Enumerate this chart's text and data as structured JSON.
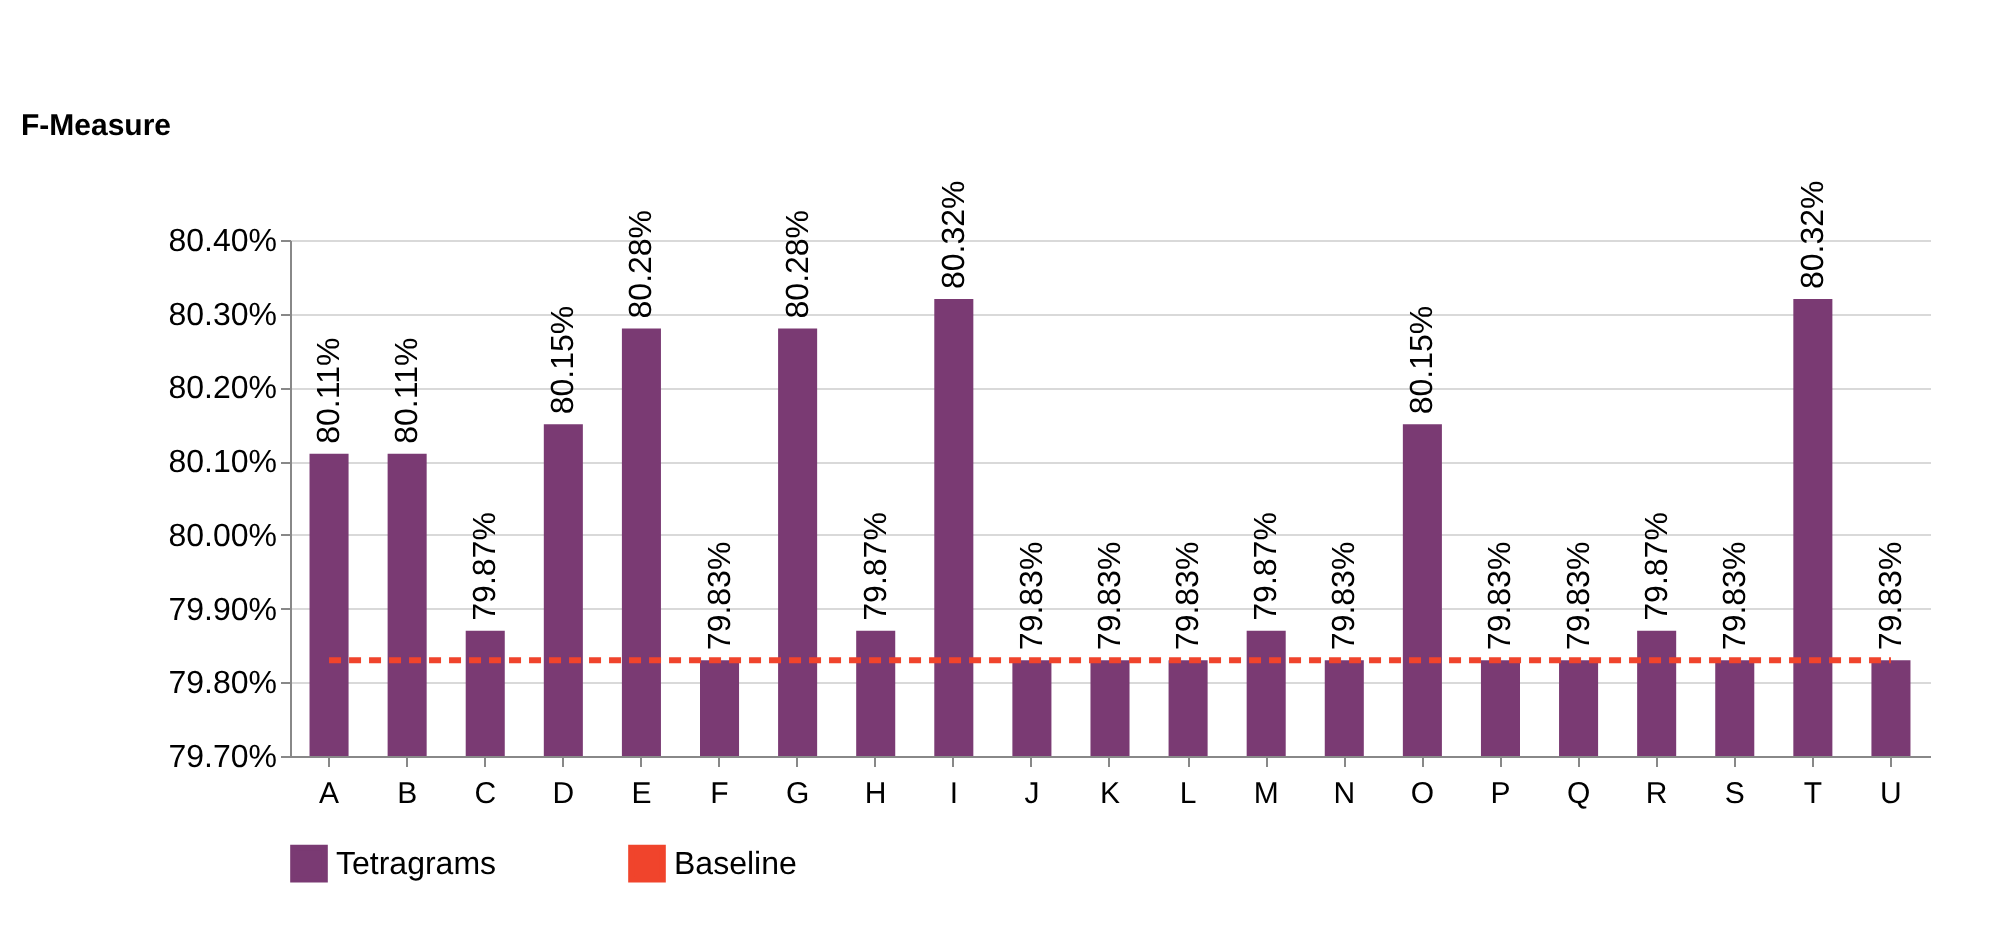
{
  "chart_data": {
    "type": "bar",
    "ylabel": "F-Measure",
    "categories": [
      "A",
      "B",
      "C",
      "D",
      "E",
      "F",
      "G",
      "H",
      "I",
      "J",
      "K",
      "L",
      "M",
      "N",
      "O",
      "P",
      "Q",
      "R",
      "S",
      "T",
      "U"
    ],
    "series": [
      {
        "name": "Tetragrams",
        "type": "bar",
        "color": "#7a3a73",
        "values": [
          80.11,
          80.11,
          79.87,
          80.15,
          80.28,
          79.83,
          80.28,
          79.87,
          80.32,
          79.83,
          79.83,
          79.83,
          79.87,
          79.83,
          80.15,
          79.83,
          79.83,
          79.87,
          79.83,
          80.32,
          79.83
        ],
        "value_labels": [
          "80.11%",
          "80.11%",
          "79.87%",
          "80.15%",
          "80.28%",
          "79.83%",
          "80.28%",
          "79.87%",
          "80.32%",
          "79.83%",
          "79.83%",
          "79.83%",
          "79.87%",
          "79.83%",
          "80.15%",
          "79.83%",
          "79.83%",
          "79.87%",
          "79.83%",
          "80.32%",
          "79.83%"
        ]
      },
      {
        "name": "Baseline",
        "type": "line",
        "color": "#f0442c",
        "line_style": "dashed",
        "values": [
          79.83,
          79.83,
          79.83,
          79.83,
          79.83,
          79.83,
          79.83,
          79.83,
          79.83,
          79.83,
          79.83,
          79.83,
          79.83,
          79.83,
          79.83,
          79.83,
          79.83,
          79.83,
          79.83,
          79.83,
          79.83
        ]
      }
    ],
    "ylim": [
      79.7,
      80.4
    ],
    "yticks": [
      {
        "value": 79.7,
        "label": "79.70%"
      },
      {
        "value": 79.8,
        "label": "79.80%"
      },
      {
        "value": 79.9,
        "label": "79.90%"
      },
      {
        "value": 80.0,
        "label": "80.00%"
      },
      {
        "value": 80.1,
        "label": "80.10%"
      },
      {
        "value": 80.2,
        "label": "80.20%"
      },
      {
        "value": 80.3,
        "label": "80.30%"
      },
      {
        "value": 80.4,
        "label": "80.40%"
      }
    ],
    "grid": "y",
    "legend": "bottom"
  }
}
